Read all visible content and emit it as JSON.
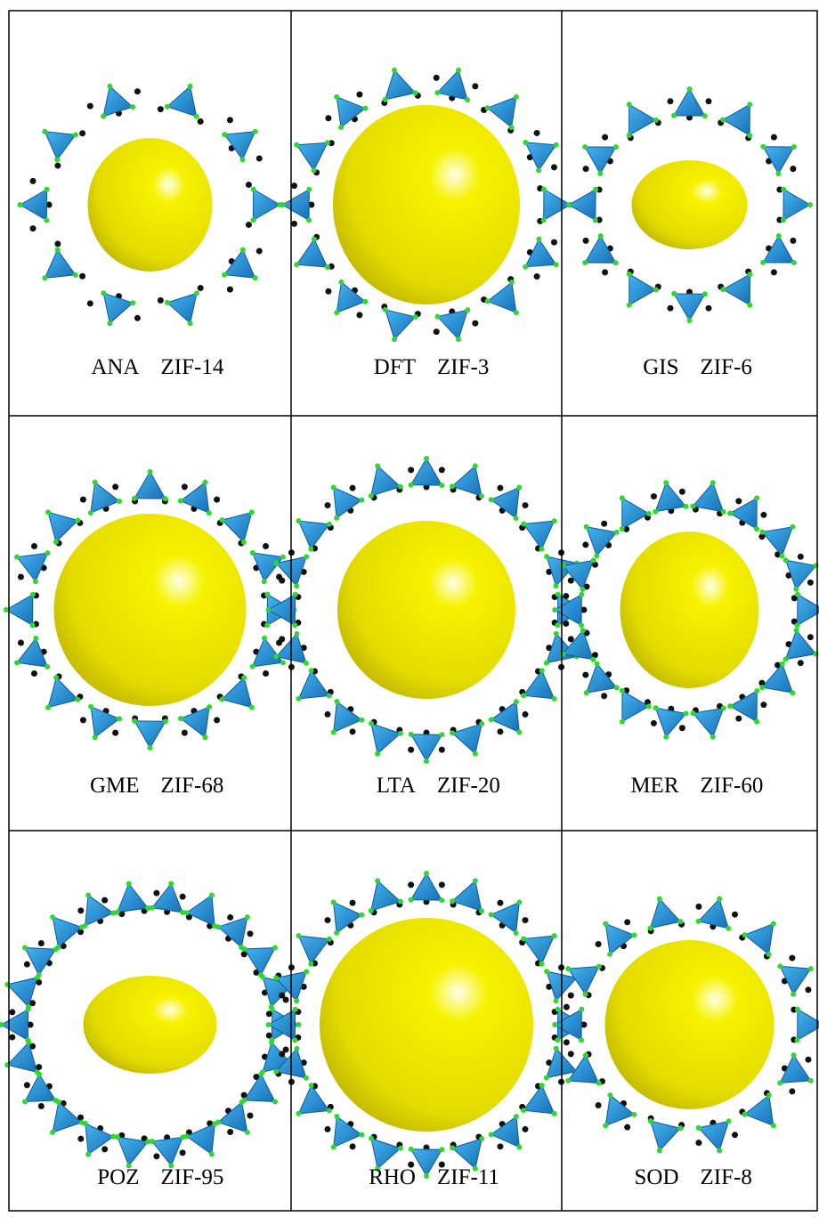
{
  "table": {
    "rows": [
      [
        {
          "topology": "ANA",
          "zif": "ZIF-14"
        },
        {
          "topology": "DFT",
          "zif": "ZIF-3"
        },
        {
          "topology": "GIS",
          "zif": "ZIF-6"
        }
      ],
      [
        {
          "topology": "GME",
          "zif": "ZIF-68"
        },
        {
          "topology": "LTA",
          "zif": "ZIF-20"
        },
        {
          "topology": "MER",
          "zif": "ZIF-60"
        }
      ],
      [
        {
          "topology": "POZ",
          "zif": "ZIF-95"
        },
        {
          "topology": "RHO",
          "zif": "ZIF-11"
        },
        {
          "topology": "SOD",
          "zif": "ZIF-8"
        }
      ]
    ]
  }
}
